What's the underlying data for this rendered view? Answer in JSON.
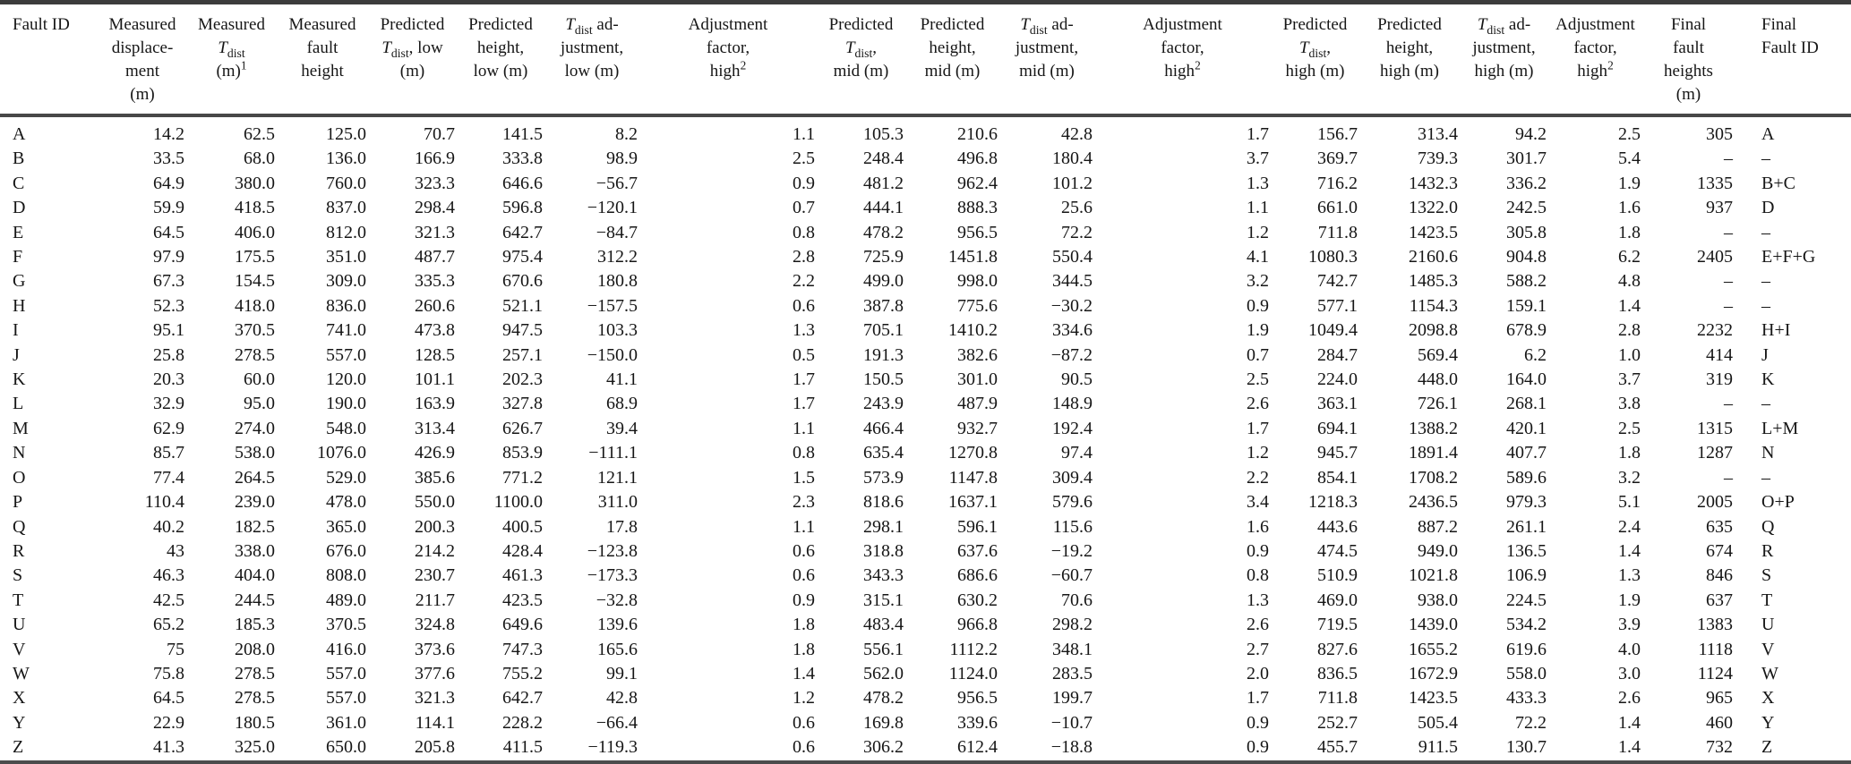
{
  "colors": {
    "background": "#ffffff",
    "text": "#161616",
    "rule_top": "#3c3c3c",
    "rule": "#4c4c4c"
  },
  "table": {
    "missing_value_marker": "–",
    "columns": [
      {
        "id": "fault-id",
        "lines": [
          [
            "Fault ID"
          ]
        ]
      },
      {
        "id": "measured-displacement",
        "lines": [
          [
            "Measured"
          ],
          [
            "displace-"
          ],
          [
            "ment"
          ],
          [
            "(m)"
          ]
        ]
      },
      {
        "id": "measured-tdist",
        "lines": [
          [
            "Measured"
          ],
          [
            {
              "i": "T"
            },
            {
              "sub": "dist"
            }
          ],
          [
            "(m)",
            {
              "sup": "1"
            }
          ]
        ]
      },
      {
        "id": "measured-fault-height",
        "lines": [
          [
            "Measured"
          ],
          [
            "fault"
          ],
          [
            "height"
          ]
        ]
      },
      {
        "id": "predicted-tdist-low",
        "lines": [
          [
            "Predicted"
          ],
          [
            {
              "i": "T"
            },
            {
              "sub": "dist"
            },
            ", low"
          ],
          [
            "(m)"
          ]
        ]
      },
      {
        "id": "predicted-height-low",
        "lines": [
          [
            "Predicted"
          ],
          [
            "height,"
          ],
          [
            "low (m)"
          ]
        ]
      },
      {
        "id": "tdist-adjustment-low",
        "lines": [
          [
            {
              "i": "T"
            },
            {
              "sub": "dist"
            },
            " ad-"
          ],
          [
            "justment,"
          ],
          [
            "low (m)"
          ]
        ]
      },
      {
        "id": "adjustment-factor-high-1",
        "lines": [
          [
            "Adjustment"
          ],
          [
            "factor,"
          ],
          [
            "high",
            {
              "sup": "2"
            }
          ]
        ]
      },
      {
        "id": "predicted-tdist-mid",
        "lines": [
          [
            "Predicted"
          ],
          [
            {
              "i": "T"
            },
            {
              "sub": "dist"
            },
            ","
          ],
          [
            "mid (m)"
          ]
        ]
      },
      {
        "id": "predicted-height-mid",
        "lines": [
          [
            "Predicted"
          ],
          [
            "height,"
          ],
          [
            "mid (m)"
          ]
        ]
      },
      {
        "id": "tdist-adjustment-mid",
        "lines": [
          [
            {
              "i": "T"
            },
            {
              "sub": "dist"
            },
            " ad-"
          ],
          [
            "justment,"
          ],
          [
            "mid (m)"
          ]
        ]
      },
      {
        "id": "adjustment-factor-high-2",
        "lines": [
          [
            "Adjustment"
          ],
          [
            "factor,"
          ],
          [
            "high",
            {
              "sup": "2"
            }
          ]
        ]
      },
      {
        "id": "predicted-tdist-high",
        "lines": [
          [
            "Predicted"
          ],
          [
            {
              "i": "T"
            },
            {
              "sub": "dist"
            },
            ","
          ],
          [
            "high (m)"
          ]
        ]
      },
      {
        "id": "predicted-height-high",
        "lines": [
          [
            "Predicted"
          ],
          [
            "height,"
          ],
          [
            "high (m)"
          ]
        ]
      },
      {
        "id": "tdist-adjustment-high",
        "lines": [
          [
            {
              "i": "T"
            },
            {
              "sub": "dist"
            },
            " ad-"
          ],
          [
            "justment,"
          ],
          [
            "high (m)"
          ]
        ]
      },
      {
        "id": "adjustment-factor-high-3",
        "lines": [
          [
            "Adjustment"
          ],
          [
            "factor,"
          ],
          [
            "high",
            {
              "sup": "2"
            }
          ]
        ]
      },
      {
        "id": "final-fault-heights",
        "lines": [
          [
            "Final"
          ],
          [
            "fault"
          ],
          [
            "heights"
          ],
          [
            "(m)"
          ]
        ]
      },
      {
        "id": "final-fault-id",
        "lines": [
          [
            "Final"
          ],
          [
            "Fault ID"
          ]
        ]
      }
    ],
    "rows": [
      [
        "A",
        "14.2",
        "62.5",
        "125.0",
        "70.7",
        "141.5",
        "8.2",
        "1.1",
        "105.3",
        "210.6",
        "42.8",
        "1.7",
        "156.7",
        "313.4",
        "94.2",
        "2.5",
        "305",
        "A"
      ],
      [
        "B",
        "33.5",
        "68.0",
        "136.0",
        "166.9",
        "333.8",
        "98.9",
        "2.5",
        "248.4",
        "496.8",
        "180.4",
        "3.7",
        "369.7",
        "739.3",
        "301.7",
        "5.4",
        "–",
        "–"
      ],
      [
        "C",
        "64.9",
        "380.0",
        "760.0",
        "323.3",
        "646.6",
        "−56.7",
        "0.9",
        "481.2",
        "962.4",
        "101.2",
        "1.3",
        "716.2",
        "1432.3",
        "336.2",
        "1.9",
        "1335",
        "B+C"
      ],
      [
        "D",
        "59.9",
        "418.5",
        "837.0",
        "298.4",
        "596.8",
        "−120.1",
        "0.7",
        "444.1",
        "888.3",
        "25.6",
        "1.1",
        "661.0",
        "1322.0",
        "242.5",
        "1.6",
        "937",
        "D"
      ],
      [
        "E",
        "64.5",
        "406.0",
        "812.0",
        "321.3",
        "642.7",
        "−84.7",
        "0.8",
        "478.2",
        "956.5",
        "72.2",
        "1.2",
        "711.8",
        "1423.5",
        "305.8",
        "1.8",
        "–",
        "–"
      ],
      [
        "F",
        "97.9",
        "175.5",
        "351.0",
        "487.7",
        "975.4",
        "312.2",
        "2.8",
        "725.9",
        "1451.8",
        "550.4",
        "4.1",
        "1080.3",
        "2160.6",
        "904.8",
        "6.2",
        "2405",
        "E+F+G"
      ],
      [
        "G",
        "67.3",
        "154.5",
        "309.0",
        "335.3",
        "670.6",
        "180.8",
        "2.2",
        "499.0",
        "998.0",
        "344.5",
        "3.2",
        "742.7",
        "1485.3",
        "588.2",
        "4.8",
        "–",
        "–"
      ],
      [
        "H",
        "52.3",
        "418.0",
        "836.0",
        "260.6",
        "521.1",
        "−157.5",
        "0.6",
        "387.8",
        "775.6",
        "−30.2",
        "0.9",
        "577.1",
        "1154.3",
        "159.1",
        "1.4",
        "–",
        "–"
      ],
      [
        "I",
        "95.1",
        "370.5",
        "741.0",
        "473.8",
        "947.5",
        "103.3",
        "1.3",
        "705.1",
        "1410.2",
        "334.6",
        "1.9",
        "1049.4",
        "2098.8",
        "678.9",
        "2.8",
        "2232",
        "H+I"
      ],
      [
        "J",
        "25.8",
        "278.5",
        "557.0",
        "128.5",
        "257.1",
        "−150.0",
        "0.5",
        "191.3",
        "382.6",
        "−87.2",
        "0.7",
        "284.7",
        "569.4",
        "6.2",
        "1.0",
        "414",
        "J"
      ],
      [
        "K",
        "20.3",
        "60.0",
        "120.0",
        "101.1",
        "202.3",
        "41.1",
        "1.7",
        "150.5",
        "301.0",
        "90.5",
        "2.5",
        "224.0",
        "448.0",
        "164.0",
        "3.7",
        "319",
        "K"
      ],
      [
        "L",
        "32.9",
        "95.0",
        "190.0",
        "163.9",
        "327.8",
        "68.9",
        "1.7",
        "243.9",
        "487.9",
        "148.9",
        "2.6",
        "363.1",
        "726.1",
        "268.1",
        "3.8",
        "–",
        "–"
      ],
      [
        "M",
        "62.9",
        "274.0",
        "548.0",
        "313.4",
        "626.7",
        "39.4",
        "1.1",
        "466.4",
        "932.7",
        "192.4",
        "1.7",
        "694.1",
        "1388.2",
        "420.1",
        "2.5",
        "1315",
        "L+M"
      ],
      [
        "N",
        "85.7",
        "538.0",
        "1076.0",
        "426.9",
        "853.9",
        "−111.1",
        "0.8",
        "635.4",
        "1270.8",
        "97.4",
        "1.2",
        "945.7",
        "1891.4",
        "407.7",
        "1.8",
        "1287",
        "N"
      ],
      [
        "O",
        "77.4",
        "264.5",
        "529.0",
        "385.6",
        "771.2",
        "121.1",
        "1.5",
        "573.9",
        "1147.8",
        "309.4",
        "2.2",
        "854.1",
        "1708.2",
        "589.6",
        "3.2",
        "–",
        "–"
      ],
      [
        "P",
        "110.4",
        "239.0",
        "478.0",
        "550.0",
        "1100.0",
        "311.0",
        "2.3",
        "818.6",
        "1637.1",
        "579.6",
        "3.4",
        "1218.3",
        "2436.5",
        "979.3",
        "5.1",
        "2005",
        "O+P"
      ],
      [
        "Q",
        "40.2",
        "182.5",
        "365.0",
        "200.3",
        "400.5",
        "17.8",
        "1.1",
        "298.1",
        "596.1",
        "115.6",
        "1.6",
        "443.6",
        "887.2",
        "261.1",
        "2.4",
        "635",
        "Q"
      ],
      [
        "R",
        "43",
        "338.0",
        "676.0",
        "214.2",
        "428.4",
        "−123.8",
        "0.6",
        "318.8",
        "637.6",
        "−19.2",
        "0.9",
        "474.5",
        "949.0",
        "136.5",
        "1.4",
        "674",
        "R"
      ],
      [
        "S",
        "46.3",
        "404.0",
        "808.0",
        "230.7",
        "461.3",
        "−173.3",
        "0.6",
        "343.3",
        "686.6",
        "−60.7",
        "0.8",
        "510.9",
        "1021.8",
        "106.9",
        "1.3",
        "846",
        "S"
      ],
      [
        "T",
        "42.5",
        "244.5",
        "489.0",
        "211.7",
        "423.5",
        "−32.8",
        "0.9",
        "315.1",
        "630.2",
        "70.6",
        "1.3",
        "469.0",
        "938.0",
        "224.5",
        "1.9",
        "637",
        "T"
      ],
      [
        "U",
        "65.2",
        "185.3",
        "370.5",
        "324.8",
        "649.6",
        "139.6",
        "1.8",
        "483.4",
        "966.8",
        "298.2",
        "2.6",
        "719.5",
        "1439.0",
        "534.2",
        "3.9",
        "1383",
        "U"
      ],
      [
        "V",
        "75",
        "208.0",
        "416.0",
        "373.6",
        "747.3",
        "165.6",
        "1.8",
        "556.1",
        "1112.2",
        "348.1",
        "2.7",
        "827.6",
        "1655.2",
        "619.6",
        "4.0",
        "1118",
        "V"
      ],
      [
        "W",
        "75.8",
        "278.5",
        "557.0",
        "377.6",
        "755.2",
        "99.1",
        "1.4",
        "562.0",
        "1124.0",
        "283.5",
        "2.0",
        "836.5",
        "1672.9",
        "558.0",
        "3.0",
        "1124",
        "W"
      ],
      [
        "X",
        "64.5",
        "278.5",
        "557.0",
        "321.3",
        "642.7",
        "42.8",
        "1.2",
        "478.2",
        "956.5",
        "199.7",
        "1.7",
        "711.8",
        "1423.5",
        "433.3",
        "2.6",
        "965",
        "X"
      ],
      [
        "Y",
        "22.9",
        "180.5",
        "361.0",
        "114.1",
        "228.2",
        "−66.4",
        "0.6",
        "169.8",
        "339.6",
        "−10.7",
        "0.9",
        "252.7",
        "505.4",
        "72.2",
        "1.4",
        "460",
        "Y"
      ],
      [
        "Z",
        "41.3",
        "325.0",
        "650.0",
        "205.8",
        "411.5",
        "−119.3",
        "0.6",
        "306.2",
        "612.4",
        "−18.8",
        "0.9",
        "455.7",
        "911.5",
        "130.7",
        "1.4",
        "732",
        "Z"
      ]
    ]
  }
}
